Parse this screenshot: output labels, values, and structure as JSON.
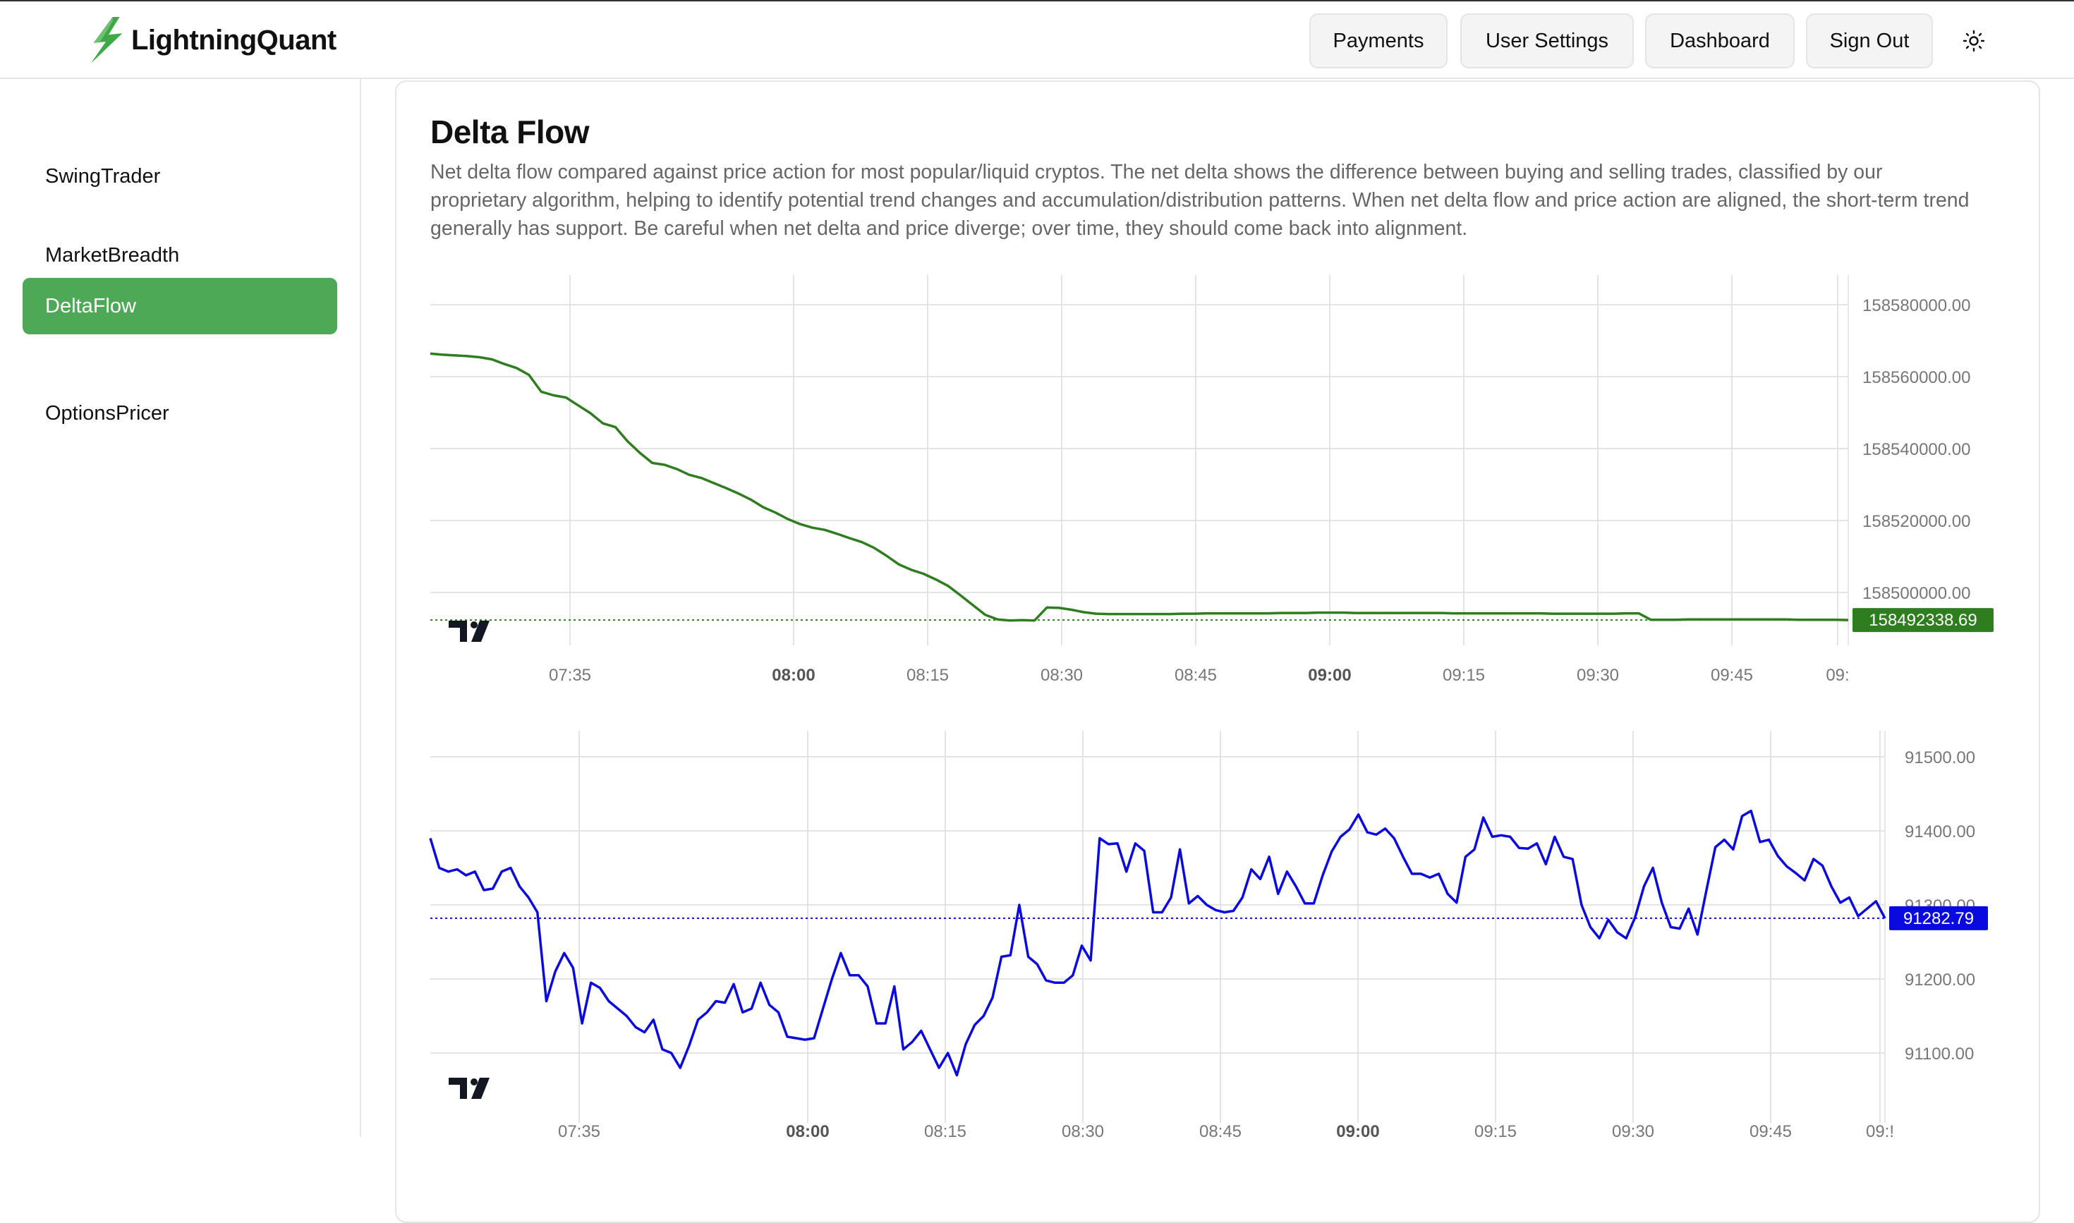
{
  "app": {
    "name": "LightningQuant"
  },
  "nav": {
    "payments": "Payments",
    "user_settings": "User Settings",
    "dashboard": "Dashboard",
    "sign_out": "Sign Out",
    "theme_icon": "sun-icon"
  },
  "sidebar": {
    "items": [
      {
        "label": "SwingTrader",
        "active": false
      },
      {
        "label": "MarketBreadth",
        "active": false
      },
      {
        "label": "DeltaFlow",
        "active": true
      },
      {
        "label": "OptionsPricer",
        "active": false
      }
    ],
    "active_color": "#4ea957"
  },
  "page": {
    "title": "Delta Flow",
    "description": "Net delta flow compared against price action for most popular/liquid cryptos. The net delta shows the difference between buying and selling trades, classified by our proprietary algorithm, helping to identify potential trend changes and accumulation/distribution patterns. When net delta flow and price action are aligned, the short-term trend generally has support. Be careful when net delta and price diverge; over time, they should come back into alignment."
  },
  "chart_data": [
    {
      "type": "line",
      "color": "#2e7d1e",
      "x_ticks": [
        "07:35",
        "08:00",
        "08:15",
        "08:30",
        "08:45",
        "09:00",
        "09:15",
        "09:30",
        "09:45",
        "09:"
      ],
      "bold_ticks": [
        "08:00",
        "09:00"
      ],
      "y_ticks": [
        "158580000.00",
        "158560000.00",
        "158540000.00",
        "158520000.00",
        "158500000.00"
      ],
      "ylim": [
        158492000,
        158580000
      ],
      "last_value": "158492338.69",
      "series": [
        {
          "values": [
            158566400,
            158566100,
            158565900,
            158565700,
            158565400,
            158564800,
            158563500,
            158562400,
            158560500,
            158555800,
            158554800,
            158554200,
            158552000,
            158549800,
            158547000,
            158546000,
            158542000,
            158538800,
            158536000,
            158535500,
            158534300,
            158532700,
            158531800,
            158530400,
            158529000,
            158527500,
            158525800,
            158523700,
            158522200,
            158520400,
            158519000,
            158518000,
            158517400,
            158516300,
            158515100,
            158514000,
            158512400,
            158510200,
            158507800,
            158506300,
            158505200,
            158503600,
            158501800,
            158499200,
            158496500,
            158493800,
            158492500,
            158492200,
            158492300,
            158492200,
            158495800,
            158495700,
            158495200,
            158494500,
            158494100,
            158494000,
            158494000,
            158494000,
            158494000,
            158494000,
            158494000,
            158494100,
            158494100,
            158494200,
            158494200,
            158494200,
            158494200,
            158494200,
            158494200,
            158494300,
            158494300,
            158494300,
            158494400,
            158494400,
            158494400,
            158494300,
            158494300,
            158494300,
            158494300,
            158494300,
            158494300,
            158494300,
            158494300,
            158494200,
            158494200,
            158494200,
            158494200,
            158494200,
            158494200,
            158494200,
            158494200,
            158494100,
            158494100,
            158494100,
            158494100,
            158494100,
            158494100,
            158494200,
            158494200,
            158492400,
            158492400,
            158492400,
            158492500,
            158492500,
            158492500,
            158492500,
            158492500,
            158492500,
            158492500,
            158492500,
            158492500,
            158492400,
            158492400,
            158492400,
            158492400,
            158492340
          ]
        }
      ]
    },
    {
      "type": "line",
      "color": "#0a0ae0",
      "x_ticks": [
        "07:35",
        "08:00",
        "08:15",
        "08:30",
        "08:45",
        "09:00",
        "09:15",
        "09:30",
        "09:45",
        "09:!"
      ],
      "bold_ticks": [
        "08:00",
        "09:00"
      ],
      "y_ticks": [
        "91500.00",
        "91400.00",
        "91300.00",
        "91200.00",
        "91100.00"
      ],
      "ylim": [
        91050,
        91530
      ],
      "last_value": "91282.79",
      "series": [
        {
          "values": [
            91390,
            91350,
            91345,
            91348,
            91340,
            91345,
            91320,
            91322,
            91345,
            91350,
            91325,
            91310,
            91290,
            91170,
            91210,
            91235,
            91215,
            91140,
            91195,
            91188,
            91170,
            91160,
            91150,
            91135,
            91128,
            91145,
            91105,
            91100,
            91080,
            91110,
            91145,
            91155,
            91170,
            91168,
            91193,
            91155,
            91160,
            91195,
            91165,
            91155,
            91122,
            91120,
            91118,
            91120,
            91160,
            91200,
            91235,
            91205,
            91205,
            91190,
            91140,
            91140,
            91190,
            91105,
            91115,
            91130,
            91105,
            91080,
            91100,
            91070,
            91112,
            91138,
            91150,
            91175,
            91230,
            91232,
            91300,
            91230,
            91220,
            91198,
            91195,
            91195,
            91205,
            91245,
            91225,
            91390,
            91382,
            91383,
            91345,
            91383,
            91373,
            91290,
            91290,
            91310,
            91375,
            91302,
            91312,
            91300,
            91293,
            91290,
            91292,
            91310,
            91348,
            91335,
            91365,
            91315,
            91345,
            91325,
            91302,
            91302,
            91340,
            91372,
            91392,
            91402,
            91422,
            91398,
            91395,
            91403,
            91390,
            91365,
            91342,
            91342,
            91337,
            91342,
            91315,
            91303,
            91365,
            91375,
            91418,
            91392,
            91394,
            91392,
            91377,
            91376,
            91383,
            91355,
            91392,
            91365,
            91362,
            91300,
            91270,
            91255,
            91280,
            91263,
            91255,
            91283,
            91325,
            91350,
            91303,
            91270,
            91268,
            91295,
            91260,
            91320,
            91378,
            91388,
            91375,
            91420,
            91427,
            91385,
            91388,
            91366,
            91352,
            91343,
            91333,
            91362,
            91353,
            91325,
            91303,
            91310,
            91285,
            91295,
            91305,
            91282
          ]
        }
      ]
    }
  ]
}
